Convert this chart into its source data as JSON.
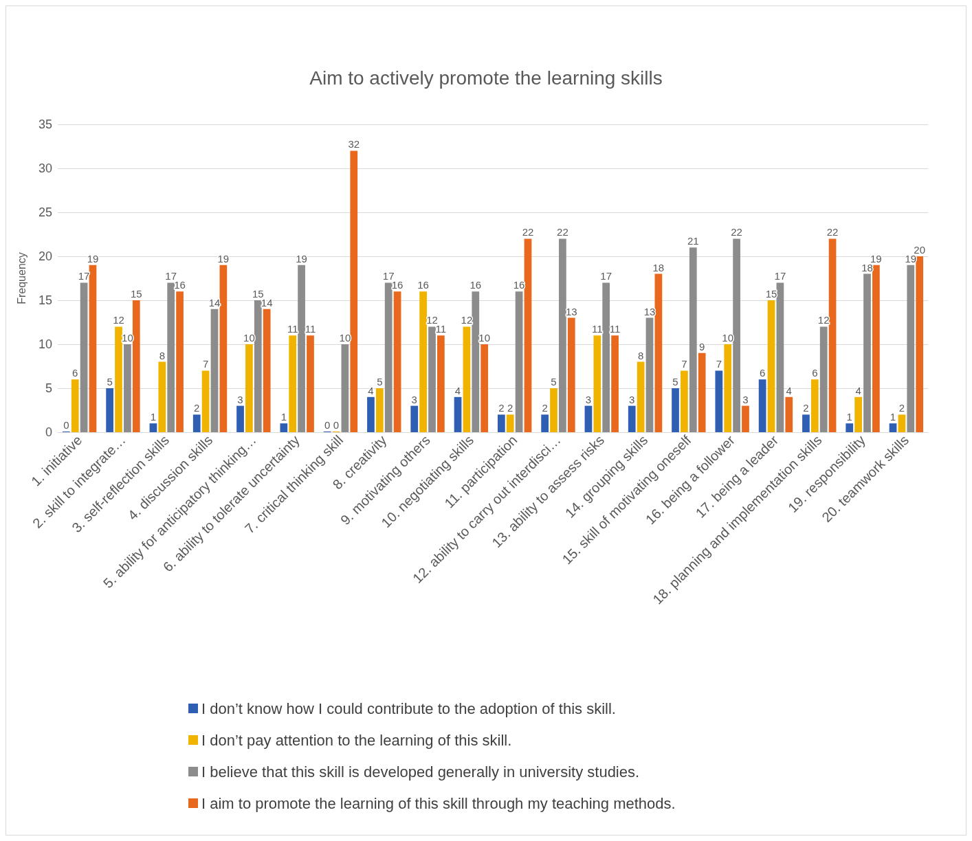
{
  "chart_data": {
    "type": "bar",
    "title": "Aim to actively promote the learning skills",
    "ylabel": "Frequency",
    "categories": [
      "1. initiative",
      "2. skill to integrate…",
      "3. self-reflection skills",
      "4. discussion skills",
      "5. ability for anticipatory thinking…",
      "6. ability to tolerate uncertainty",
      "7. critical thinking skill",
      "8. creativity",
      "9. motivating others",
      "10. negotiating skills",
      "11. participation",
      "12. ability to carry out interdisci…",
      "13. ability to assess risks",
      "14. grouping skills",
      "15. skill of motivating oneself",
      "16. being a follower",
      "17. being a leader",
      "18. planning and implementation skills",
      "19. responsibility",
      "20. teamwork skills"
    ],
    "series": [
      {
        "name": "I don’t know how I could contribute to the adoption of this skill.",
        "color": "#2f5fb3",
        "values": [
          0,
          5,
          1,
          2,
          3,
          1,
          0,
          4,
          3,
          4,
          2,
          2,
          3,
          3,
          5,
          7,
          6,
          2,
          1,
          1
        ]
      },
      {
        "name": "I don’t pay attention to the learning of this skill.",
        "color": "#f0b400",
        "values": [
          6,
          12,
          8,
          7,
          10,
          11,
          0,
          5,
          16,
          12,
          2,
          5,
          11,
          8,
          7,
          10,
          15,
          6,
          4,
          2
        ]
      },
      {
        "name": "I believe that this skill is developed generally in university studies.",
        "color": "#8c8c8c",
        "values": [
          17,
          10,
          17,
          14,
          15,
          19,
          10,
          17,
          12,
          16,
          16,
          22,
          17,
          13,
          21,
          22,
          17,
          12,
          18,
          19
        ]
      },
      {
        "name": "I aim to promote the learning of this skill through my teaching methods.",
        "color": "#e8681e",
        "values": [
          19,
          15,
          16,
          19,
          14,
          11,
          32,
          16,
          11,
          10,
          22,
          13,
          11,
          18,
          9,
          3,
          4,
          22,
          19,
          20
        ]
      }
    ],
    "ylim": [
      0,
      35
    ],
    "yticks": [
      0,
      5,
      10,
      15,
      20,
      25,
      30,
      35
    ],
    "grid": "y",
    "legend": "bottom",
    "data_labels": true
  }
}
